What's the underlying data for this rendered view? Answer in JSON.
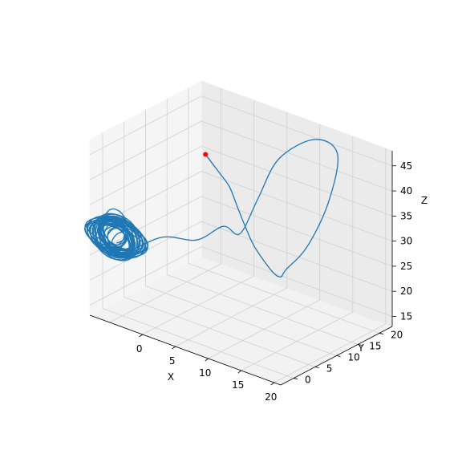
{
  "chart_data": {
    "type": "line",
    "subtype": "3d-line",
    "title": "",
    "xlabel": "X",
    "ylabel": "Y",
    "zlabel": "Z",
    "xlim": [
      -8,
      21
    ],
    "ylim": [
      -3,
      23
    ],
    "zlim": [
      13,
      48
    ],
    "x_ticks": [
      "0",
      "5",
      "10",
      "15",
      "20"
    ],
    "y_ticks": [
      "0",
      "5",
      "10",
      "15",
      "20"
    ],
    "z_ticks": [
      "15",
      "20",
      "25",
      "30",
      "35",
      "40",
      "45"
    ],
    "grid": true,
    "line_color": "#1f77b4",
    "marker_color": "#ff0000",
    "series": [
      {
        "description": "trajectory spiralling from the red start point into a dense orbit",
        "start_point": {
          "x": -1.7,
          "y": 14.3,
          "z": 40.3
        },
        "points": [
          [
            -1.7,
            14.3,
            40.3
          ],
          [
            -0.1,
            14.8,
            37.5
          ],
          [
            1.2,
            15.4,
            34.8
          ],
          [
            2.0,
            16.0,
            31.0
          ],
          [
            2.8,
            16.6,
            27.2
          ],
          [
            4.0,
            17.0,
            23.4
          ],
          [
            6.7,
            16.9,
            19.9
          ],
          [
            9.4,
            14.8,
            21.0
          ],
          [
            10.7,
            14.0,
            23.4
          ],
          [
            13.1,
            15.2,
            28.5
          ],
          [
            14.5,
            18.0,
            36.6
          ],
          [
            13.8,
            21.3,
            44.6
          ],
          [
            11.7,
            19.2,
            47.5
          ],
          [
            8.8,
            15.3,
            44.0
          ],
          [
            7.5,
            12.4,
            36.7
          ],
          [
            6.6,
            9.6,
            30.6
          ],
          [
            4.2,
            9.4,
            31.0
          ],
          [
            2.7,
            5.5,
            29.3
          ],
          [
            -1.0,
            3.3,
            29.1
          ],
          [
            -3.9,
            -0.8,
            26.9
          ],
          [
            -7.0,
            -3.0,
            28.0
          ],
          [
            -6.7,
            -1.0,
            33.2
          ],
          [
            -5.5,
            0.0,
            33.6
          ],
          [
            -4.6,
            0.6,
            30.7
          ],
          [
            -5.2,
            0.2,
            26.6
          ],
          [
            -6.2,
            -0.7,
            25.6
          ],
          [
            -6.9,
            -1.5,
            27.4
          ],
          [
            -6.5,
            -1.7,
            30.0
          ],
          [
            -5.3,
            -1.0,
            31.3
          ],
          [
            -4.8,
            0.2,
            30.2
          ],
          [
            -4.8,
            0.2,
            28.0
          ],
          [
            -5.4,
            -0.4,
            27.1
          ],
          [
            -6.0,
            -0.9,
            27.6
          ],
          [
            -5.6,
            -0.5,
            29.1
          ],
          [
            -5.0,
            0.0,
            29.6
          ],
          [
            -4.7,
            0.1,
            28.7
          ],
          [
            -5.5,
            -0.6,
            27.0
          ],
          [
            -6.3,
            -1.1,
            27.5
          ],
          [
            -6.3,
            -1.3,
            29.6
          ],
          [
            -5.2,
            -0.8,
            31.1
          ],
          [
            -4.4,
            0.0,
            30.2
          ],
          [
            -4.6,
            0.2,
            27.8
          ],
          [
            -5.6,
            -0.5,
            26.2
          ],
          [
            -6.6,
            -1.3,
            26.9
          ],
          [
            -6.7,
            -1.6,
            29.5
          ],
          [
            -5.8,
            -1.4,
            31.6
          ],
          [
            -4.7,
            -0.3,
            31.6
          ],
          [
            -4.4,
            0.2,
            29.3
          ],
          [
            -5.0,
            -0.2,
            27.1
          ],
          [
            -6.1,
            -1.0,
            26.8
          ],
          [
            -6.4,
            -1.3,
            28.8
          ],
          [
            -5.6,
            -1.0,
            30.5
          ],
          [
            -4.8,
            -0.1,
            30.0
          ],
          [
            -4.9,
            0.0,
            28.2
          ],
          [
            -5.6,
            -0.5,
            27.4
          ]
        ]
      }
    ]
  }
}
